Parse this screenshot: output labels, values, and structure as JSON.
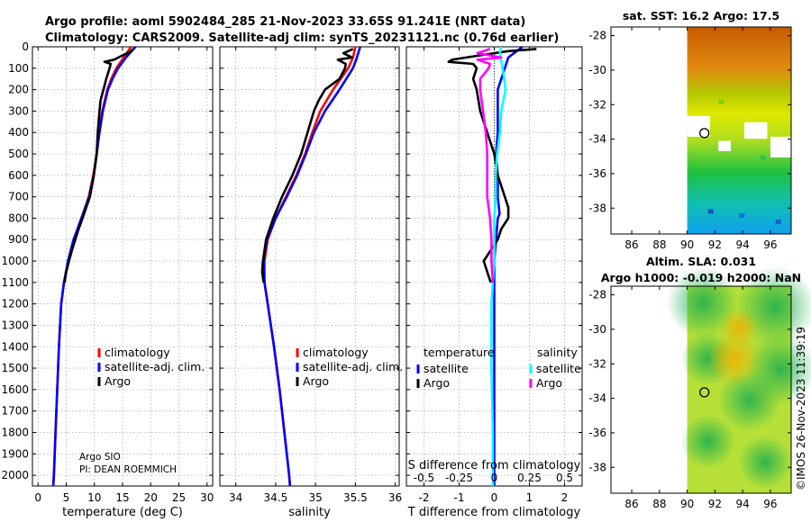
{
  "figure_title_line1": "Argo profile: aoml 5902484_285 21-Nov-2023 33.65S 91.241E (NRT data)",
  "figure_title_line2": "Climatology: CARS2009. Satellite-adj clim: synTS_20231121.nc (0.76d earlier)",
  "credit_line1": "Argo SIO",
  "credit_line2": "PI: DEAN ROEMMICH",
  "watermark": "©IMOS 26-Nov-2023 11:39:19",
  "colors": {
    "climatology": "#ff0000",
    "satellite": "#0000ff",
    "argo": "#000000",
    "sat_salinity": "#00ffff",
    "argo_salinity": "#ff00ff"
  },
  "chart_data": [
    {
      "type": "line",
      "id": "temperature",
      "xlabel": "temperature (deg C)",
      "ylabel": "",
      "xlim": [
        -1,
        31
      ],
      "ylim": [
        2050,
        0
      ],
      "xticks": [
        "0",
        "5",
        "10",
        "15",
        "20",
        "25",
        "30"
      ],
      "xtick_values": [
        0,
        5,
        10,
        15,
        20,
        25,
        30
      ],
      "yticks": [
        "0",
        "100",
        "200",
        "300",
        "400",
        "500",
        "600",
        "700",
        "800",
        "900",
        "1000",
        "1100",
        "1200",
        "1300",
        "1400",
        "1500",
        "1600",
        "1700",
        "1800",
        "1900",
        "2000"
      ],
      "ytick_values": [
        0,
        100,
        200,
        300,
        400,
        500,
        600,
        700,
        800,
        900,
        1000,
        1100,
        1200,
        1300,
        1400,
        1500,
        1600,
        1700,
        1800,
        1900,
        2000
      ],
      "legend": [
        "climatology",
        "satellite-adj. clim.",
        "Argo"
      ],
      "series": [
        {
          "name": "climatology",
          "depth": [
            0,
            50,
            100,
            150,
            200,
            300,
            400,
            500,
            600,
            700,
            800,
            900,
            1000,
            1100,
            1200,
            1400,
            1600,
            1800,
            2000,
            2050
          ],
          "values": [
            16.5,
            15.2,
            13.9,
            13.0,
            12.3,
            11.4,
            10.8,
            10.4,
            9.8,
            9.0,
            7.7,
            6.4,
            5.4,
            4.6,
            4.1,
            3.7,
            3.4,
            3.1,
            2.8,
            2.7
          ]
        },
        {
          "name": "satellite-adj. clim.",
          "depth": [
            0,
            50,
            100,
            150,
            200,
            300,
            400,
            500,
            600,
            700,
            800,
            900,
            1000,
            1100,
            1200,
            1400,
            1600,
            1800,
            2000,
            2050
          ],
          "values": [
            17.3,
            15.6,
            14.2,
            13.2,
            12.4,
            11.5,
            10.9,
            10.4,
            9.9,
            9.1,
            7.7,
            6.3,
            5.3,
            4.6,
            4.1,
            3.7,
            3.4,
            3.1,
            2.8,
            2.7
          ]
        },
        {
          "name": "Argo",
          "depth": [
            10,
            20,
            40,
            60,
            70,
            80,
            100,
            150,
            200,
            250,
            300,
            400,
            500,
            600,
            700,
            800,
            850,
            900,
            950,
            1000,
            1050,
            1100
          ],
          "values": [
            16.8,
            16.6,
            15.0,
            13.5,
            11.8,
            12.9,
            12.7,
            12.1,
            11.6,
            11.1,
            10.9,
            10.6,
            10.4,
            9.9,
            9.2,
            7.9,
            7.2,
            6.6,
            6.0,
            5.5,
            5.0,
            4.7
          ]
        }
      ]
    },
    {
      "type": "line",
      "id": "salinity",
      "xlabel": "salinity",
      "xlim": [
        33.8,
        36.05
      ],
      "ylim": [
        2050,
        0
      ],
      "xticks": [
        "34",
        "34.5",
        "35",
        "35.5",
        "36"
      ],
      "xtick_values": [
        34,
        34.5,
        35,
        35.5,
        36
      ],
      "legend": [
        "climatology",
        "satellite-adj. clim.",
        "Argo"
      ],
      "series": [
        {
          "name": "climatology",
          "depth": [
            0,
            50,
            100,
            200,
            300,
            400,
            500,
            600,
            700,
            800,
            900,
            1000,
            1100,
            1200,
            1400,
            1600,
            1800,
            2000,
            2050
          ],
          "values": [
            35.5,
            35.47,
            35.41,
            35.22,
            35.06,
            34.96,
            34.87,
            34.76,
            34.63,
            34.5,
            34.4,
            34.36,
            34.36,
            34.4,
            34.48,
            34.55,
            34.61,
            34.67,
            34.68
          ]
        },
        {
          "name": "satellite-adj. clim.",
          "depth": [
            0,
            50,
            100,
            200,
            300,
            400,
            500,
            600,
            700,
            800,
            900,
            1000,
            1100,
            1200,
            1400,
            1600,
            1800,
            2000,
            2050
          ],
          "values": [
            35.56,
            35.52,
            35.47,
            35.3,
            35.12,
            34.98,
            34.88,
            34.77,
            34.64,
            34.5,
            34.39,
            34.35,
            34.36,
            34.4,
            34.48,
            34.55,
            34.61,
            34.67,
            34.68
          ]
        },
        {
          "name": "Argo",
          "depth": [
            10,
            30,
            50,
            60,
            80,
            100,
            150,
            200,
            250,
            300,
            400,
            500,
            600,
            700,
            800,
            900,
            1000,
            1050,
            1100
          ],
          "values": [
            35.47,
            35.35,
            35.46,
            35.28,
            35.38,
            35.37,
            35.3,
            35.12,
            35.04,
            34.98,
            34.9,
            34.82,
            34.71,
            34.58,
            34.47,
            34.38,
            34.34,
            34.33,
            34.35
          ]
        }
      ]
    },
    {
      "type": "line",
      "id": "differences",
      "xlabel": "T difference from climatology",
      "top_xlabel": "S difference from climatology",
      "xlim": [
        -2.5,
        2.5
      ],
      "ylim": [
        2050,
        0
      ],
      "xticks": [
        "-2",
        "-1",
        "0",
        "1",
        "2"
      ],
      "xtick_values": [
        -2,
        -1,
        0,
        1,
        2
      ],
      "sticks": [
        "-0.5",
        "-0.25",
        "0",
        "0.25",
        "0.5"
      ],
      "stick_values": [
        -0.5,
        -0.25,
        0,
        0.25,
        0.5
      ],
      "legend_t_title": "temperature",
      "legend_s_title": "salinity",
      "legend_t": [
        "satellite",
        "Argo"
      ],
      "legend_s": [
        "satellite",
        "Argo"
      ],
      "series": [
        {
          "name": "T satellite",
          "depth": [
            0,
            50,
            100,
            200,
            300,
            400,
            500,
            600,
            700,
            780,
            800,
            900,
            1000,
            1100,
            1200,
            1400,
            1600,
            1800,
            2000,
            2050
          ],
          "values": [
            0.8,
            0.4,
            0.3,
            0.1,
            0.1,
            0.1,
            0.05,
            0.1,
            0.1,
            0.15,
            0.1,
            0.05,
            0.0,
            0.0,
            0.0,
            0.0,
            0.0,
            0.0,
            0.0,
            0.0
          ]
        },
        {
          "name": "T Argo",
          "depth": [
            10,
            20,
            40,
            60,
            70,
            80,
            100,
            150,
            200,
            300,
            400,
            500,
            600,
            700,
            750,
            800,
            850,
            900,
            950,
            1000,
            1050,
            1100
          ],
          "values": [
            1.2,
            0.4,
            -0.4,
            -1.2,
            -1.3,
            -0.6,
            -0.5,
            -0.6,
            -0.5,
            -0.4,
            -0.2,
            0.0,
            0.1,
            0.3,
            0.4,
            0.4,
            0.2,
            0.1,
            -0.1,
            -0.3,
            -0.2,
            -0.1
          ]
        },
        {
          "name": "S satellite",
          "depth": [
            0,
            30,
            100,
            200,
            300,
            400,
            500,
            600,
            700,
            800,
            900,
            1000,
            1100,
            1200,
            1500,
            1800,
            2000,
            2050
          ],
          "values": [
            0.05,
            0.04,
            0.06,
            0.08,
            0.05,
            0.04,
            0.02,
            0.01,
            0.01,
            0.0,
            0.0,
            0.0,
            -0.01,
            -0.02,
            -0.02,
            -0.01,
            -0.01,
            -0.01
          ]
        },
        {
          "name": "S Argo",
          "depth": [
            10,
            30,
            50,
            60,
            80,
            100,
            150,
            200,
            300,
            400,
            500,
            600,
            700,
            800,
            900,
            1000,
            1100
          ],
          "values": [
            -0.03,
            -0.12,
            0.05,
            -0.12,
            -0.03,
            -0.04,
            -0.1,
            -0.1,
            -0.08,
            -0.06,
            -0.05,
            -0.05,
            -0.05,
            -0.03,
            -0.02,
            -0.02,
            -0.01
          ]
        }
      ]
    },
    {
      "type": "heatmap",
      "id": "sst_map",
      "title": "sat. SST: 16.2 Argo: 17.5",
      "xlim": [
        84.5,
        97.5
      ],
      "ylim": [
        -39.5,
        -27.5
      ],
      "xticks": [
        "86",
        "88",
        "90",
        "92",
        "94",
        "96"
      ],
      "xtick_values": [
        86,
        88,
        90,
        92,
        94,
        96
      ],
      "yticks": [
        "-28",
        "-30",
        "-32",
        "-34",
        "-36",
        "-38"
      ],
      "ytick_values": [
        -28,
        -30,
        -32,
        -34,
        -36,
        -38
      ],
      "data_extent_lon": [
        90,
        97.5
      ],
      "marker": {
        "lon": 91.24,
        "lat": -33.65
      }
    },
    {
      "type": "heatmap",
      "id": "sla_map",
      "title": "Altim. SLA: 0.031",
      "subtitle": "Argo h1000: -0.019 h2000: NaN",
      "xlim": [
        84.5,
        97.5
      ],
      "ylim": [
        -39.5,
        -27.5
      ],
      "xticks": [
        "86",
        "88",
        "90",
        "92",
        "94",
        "96"
      ],
      "xtick_values": [
        86,
        88,
        90,
        92,
        94,
        96
      ],
      "yticks": [
        "-28",
        "-30",
        "-32",
        "-34",
        "-36",
        "-38"
      ],
      "ytick_values": [
        -28,
        -30,
        -32,
        -34,
        -36,
        -38
      ],
      "data_extent_lon": [
        90,
        97.5
      ],
      "marker": {
        "lon": 91.24,
        "lat": -33.65
      }
    }
  ]
}
